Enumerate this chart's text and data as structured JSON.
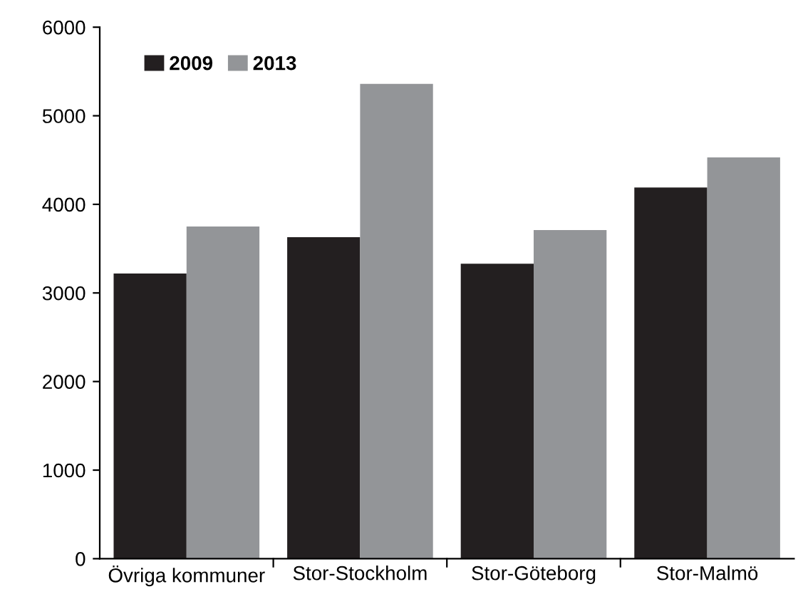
{
  "chart_data": {
    "type": "bar",
    "categories": [
      "Övriga kommuner",
      "Stor-Stockholm",
      "Stor-Göteborg",
      "Stor-Malmö"
    ],
    "series": [
      {
        "name": "2009",
        "color": "#231f20",
        "values": [
          3220,
          3630,
          3330,
          4190
        ]
      },
      {
        "name": "2013",
        "color": "#939598",
        "values": [
          3750,
          5360,
          3710,
          4530
        ]
      }
    ],
    "ylim": [
      0,
      6000
    ],
    "yticks": [
      0,
      1000,
      2000,
      3000,
      4000,
      5000,
      6000
    ],
    "grid": false,
    "legend": "top left"
  }
}
